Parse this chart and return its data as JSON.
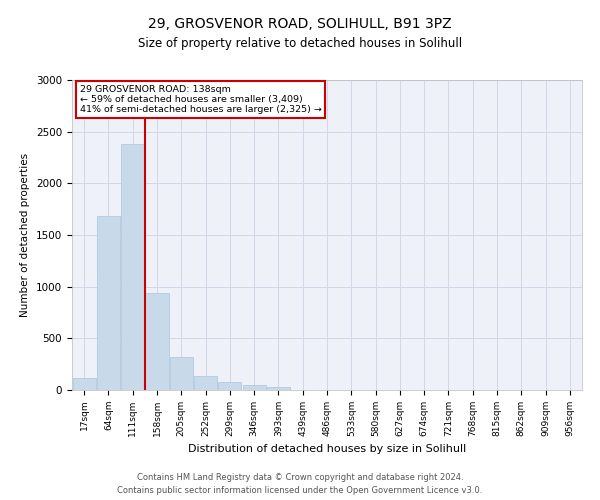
{
  "title_line1": "29, GROSVENOR ROAD, SOLIHULL, B91 3PZ",
  "title_line2": "Size of property relative to detached houses in Solihull",
  "xlabel": "Distribution of detached houses by size in Solihull",
  "ylabel": "Number of detached properties",
  "categories": [
    "17sqm",
    "64sqm",
    "111sqm",
    "158sqm",
    "205sqm",
    "252sqm",
    "299sqm",
    "346sqm",
    "393sqm",
    "439sqm",
    "486sqm",
    "533sqm",
    "580sqm",
    "627sqm",
    "674sqm",
    "721sqm",
    "768sqm",
    "815sqm",
    "862sqm",
    "909sqm",
    "956sqm"
  ],
  "values": [
    120,
    1680,
    2380,
    940,
    320,
    140,
    75,
    50,
    25,
    0,
    0,
    0,
    0,
    0,
    0,
    0,
    0,
    0,
    0,
    0,
    0
  ],
  "bar_color": "#c8d9ea",
  "bar_edge_color": "#aac4dd",
  "grid_color": "#d0d8e8",
  "property_size_bin_index": 2,
  "annotation_text_line1": "29 GROSVENOR ROAD: 138sqm",
  "annotation_text_line2": "← 59% of detached houses are smaller (3,409)",
  "annotation_text_line3": "41% of semi-detached houses are larger (2,325) →",
  "annotation_box_color": "#ffffff",
  "annotation_box_edge_color": "#cc0000",
  "red_line_color": "#cc0000",
  "ylim": [
    0,
    3000
  ],
  "yticks": [
    0,
    500,
    1000,
    1500,
    2000,
    2500,
    3000
  ],
  "footer_line1": "Contains HM Land Registry data © Crown copyright and database right 2024.",
  "footer_line2": "Contains public sector information licensed under the Open Government Licence v3.0.",
  "bg_color": "#ffffff",
  "plot_bg_color": "#eef2f8"
}
